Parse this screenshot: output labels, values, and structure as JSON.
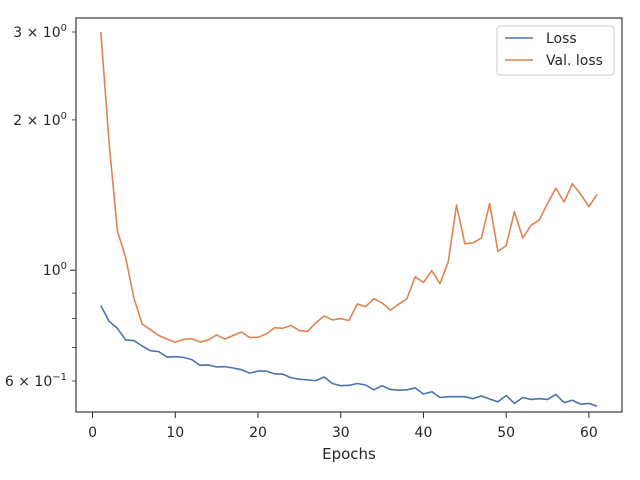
{
  "chart_data": {
    "type": "line",
    "title": "",
    "xlabel": "Epochs",
    "ylabel": "",
    "xlim": [
      -2,
      64
    ],
    "ylim": [
      0.52,
      3.2
    ],
    "y_scale": "log",
    "grid": false,
    "legend_position": "top-right",
    "x_ticks": [
      0,
      10,
      20,
      30,
      40,
      50,
      60
    ],
    "x_tick_labels": [
      "0",
      "10",
      "20",
      "30",
      "40",
      "50",
      "60"
    ],
    "y_major_ticks": [
      1
    ],
    "y_labeled_minor_ticks": [
      0.6,
      2,
      3
    ],
    "y_unlabeled_minor_ticks": [
      0.7,
      0.8,
      0.9
    ],
    "y_tick_labels": [
      {
        "value": 3,
        "mantissa": "3",
        "exponent": "0"
      },
      {
        "value": 2,
        "mantissa": "2",
        "exponent": "0"
      },
      {
        "value": 1,
        "mantissa": "",
        "exponent": "0"
      },
      {
        "value": 0.6,
        "mantissa": "6",
        "exponent": "−1"
      }
    ],
    "x": [
      1,
      2,
      3,
      4,
      5,
      6,
      7,
      8,
      9,
      10,
      11,
      12,
      13,
      14,
      15,
      16,
      17,
      18,
      19,
      20,
      21,
      22,
      23,
      24,
      25,
      26,
      27,
      28,
      29,
      30,
      31,
      32,
      33,
      34,
      35,
      36,
      37,
      38,
      39,
      40,
      41,
      42,
      43,
      44,
      45,
      46,
      47,
      48,
      49,
      50,
      51,
      52,
      53,
      54,
      55,
      56,
      57,
      58,
      59,
      60,
      61
    ],
    "series": [
      {
        "name": "Loss",
        "color": "#4c72b0",
        "values": [
          0.85,
          0.79,
          0.765,
          0.725,
          0.723,
          0.705,
          0.69,
          0.687,
          0.67,
          0.671,
          0.669,
          0.662,
          0.645,
          0.646,
          0.64,
          0.641,
          0.637,
          0.632,
          0.622,
          0.628,
          0.628,
          0.62,
          0.619,
          0.609,
          0.605,
          0.603,
          0.601,
          0.611,
          0.593,
          0.587,
          0.588,
          0.593,
          0.589,
          0.576,
          0.587,
          0.577,
          0.575,
          0.576,
          0.581,
          0.565,
          0.571,
          0.556,
          0.558,
          0.558,
          0.558,
          0.553,
          0.56,
          0.552,
          0.545,
          0.561,
          0.541,
          0.556,
          0.551,
          0.553,
          0.551,
          0.564,
          0.543,
          0.549,
          0.539,
          0.541,
          0.534
        ]
      },
      {
        "name": "Val. loss",
        "color": "#dd8452",
        "values": [
          3.0,
          1.8,
          1.2,
          1.06,
          0.88,
          0.78,
          0.76,
          0.74,
          0.728,
          0.717,
          0.727,
          0.729,
          0.718,
          0.725,
          0.742,
          0.728,
          0.74,
          0.752,
          0.733,
          0.734,
          0.745,
          0.767,
          0.765,
          0.775,
          0.757,
          0.754,
          0.785,
          0.81,
          0.795,
          0.8,
          0.793,
          0.856,
          0.845,
          0.877,
          0.86,
          0.832,
          0.855,
          0.877,
          0.97,
          0.945,
          0.998,
          0.94,
          1.04,
          1.35,
          1.13,
          1.135,
          1.16,
          1.36,
          1.09,
          1.12,
          1.31,
          1.16,
          1.23,
          1.26,
          1.36,
          1.46,
          1.37,
          1.49,
          1.42,
          1.34,
          1.42
        ]
      }
    ]
  }
}
